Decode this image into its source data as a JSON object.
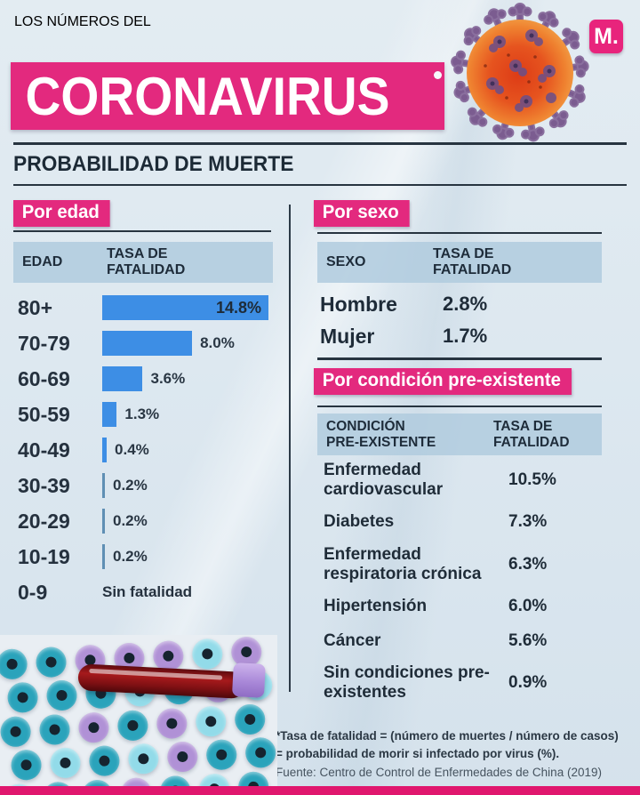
{
  "header": {
    "title_top": "LOS NÚMEROS DEL",
    "title_main": "CORONAVIRUS",
    "brand_logo": "M.",
    "section_title": "PROBABILIDAD DE MUERTE"
  },
  "age": {
    "badge": "Por edad",
    "col_label": "EDAD",
    "col_value_line1": "TASA DE",
    "col_value_line2": "FATALIDAD",
    "rows": [
      {
        "label": "80+",
        "value_text": "14.8%"
      },
      {
        "label": "70-79",
        "value_text": "8.0%"
      },
      {
        "label": "60-69",
        "value_text": "3.6%"
      },
      {
        "label": "50-59",
        "value_text": "1.3%"
      },
      {
        "label": "40-49",
        "value_text": "0.4%"
      },
      {
        "label": "30-39",
        "value_text": "0.2%"
      },
      {
        "label": "20-29",
        "value_text": "0.2%"
      },
      {
        "label": "10-19",
        "value_text": "0.2%"
      },
      {
        "label": "0-9",
        "value_text": "Sin fatalidad"
      }
    ]
  },
  "sex": {
    "badge": "Por sexo",
    "col_label": "SEXO",
    "col_value_line1": "TASA DE",
    "col_value_line2": "FATALIDAD",
    "rows": [
      {
        "label": "Hombre",
        "value_text": "2.8%"
      },
      {
        "label": "Mujer",
        "value_text": "1.7%"
      }
    ]
  },
  "condition": {
    "badge": "Por condición pre-existente",
    "col_label_line1": "CONDICIÓN",
    "col_label_line2": "PRE-EXISTENTE",
    "col_value_line1": "TASA DE",
    "col_value_line2": "FATALIDAD",
    "rows": [
      {
        "label": "Enfermedad cardiovascular",
        "value_text": "10.5%"
      },
      {
        "label": "Diabetes",
        "value_text": "7.3%"
      },
      {
        "label": "Enfermedad respiratoria crónica",
        "value_text": "6.3%"
      },
      {
        "label": "Hipertensión",
        "value_text": "6.0%"
      },
      {
        "label": "Cáncer",
        "value_text": "5.6%"
      },
      {
        "label": "Sin condiciones pre-existentes",
        "value_text": "0.9%"
      }
    ]
  },
  "footnote": {
    "line1": "*Tasa de fatalidad = (número de muertes / número de casos)",
    "line2": "= probabilidad de morir si infectado por virus (%).",
    "source": "Fuente: Centro de Control de Enfermedades de China (2019)"
  },
  "colors": {
    "brand_pink": "#e3297e",
    "navy_text": "#1e2b38",
    "bar_blue": "#3d8ee5",
    "header_band_blue": "#b0cbde",
    "background": "#dde8f0",
    "bottom_bar_pink": "#e0176e"
  },
  "chart_data": [
    {
      "type": "bar",
      "title": "Por edad",
      "orientation": "horizontal",
      "categories": [
        "80+",
        "70-79",
        "60-69",
        "50-59",
        "40-49",
        "30-39",
        "20-29",
        "10-19",
        "0-9"
      ],
      "values": [
        14.8,
        8.0,
        3.6,
        1.3,
        0.4,
        0.2,
        0.2,
        0.2,
        null
      ],
      "data_labels": [
        "14.8%",
        "8.0%",
        "3.6%",
        "1.3%",
        "0.4%",
        "0.2%",
        "0.2%",
        "0.2%",
        "Sin fatalidad"
      ],
      "xlabel": "TASA DE FATALIDAD",
      "ylabel": "EDAD",
      "xlim": [
        0,
        14.8
      ],
      "grid": false,
      "legend": "none",
      "bar_color": "#3d8ee5"
    },
    {
      "type": "table",
      "title": "Por sexo",
      "columns": [
        "SEXO",
        "TASA DE FATALIDAD"
      ],
      "rows": [
        [
          "Hombre",
          "2.8%"
        ],
        [
          "Mujer",
          "1.7%"
        ]
      ]
    },
    {
      "type": "table",
      "title": "Por condición pre-existente",
      "columns": [
        "CONDICIÓN PRE-EXISTENTE",
        "TASA DE FATALIDAD"
      ],
      "rows": [
        [
          "Enfermedad cardiovascular",
          "10.5%"
        ],
        [
          "Diabetes",
          "7.3%"
        ],
        [
          "Enfermedad respiratoria crónica",
          "6.3%"
        ],
        [
          "Hipertensión",
          "6.0%"
        ],
        [
          "Cáncer",
          "5.6%"
        ],
        [
          "Sin condiciones pre-existentes",
          "0.9%"
        ]
      ]
    }
  ]
}
